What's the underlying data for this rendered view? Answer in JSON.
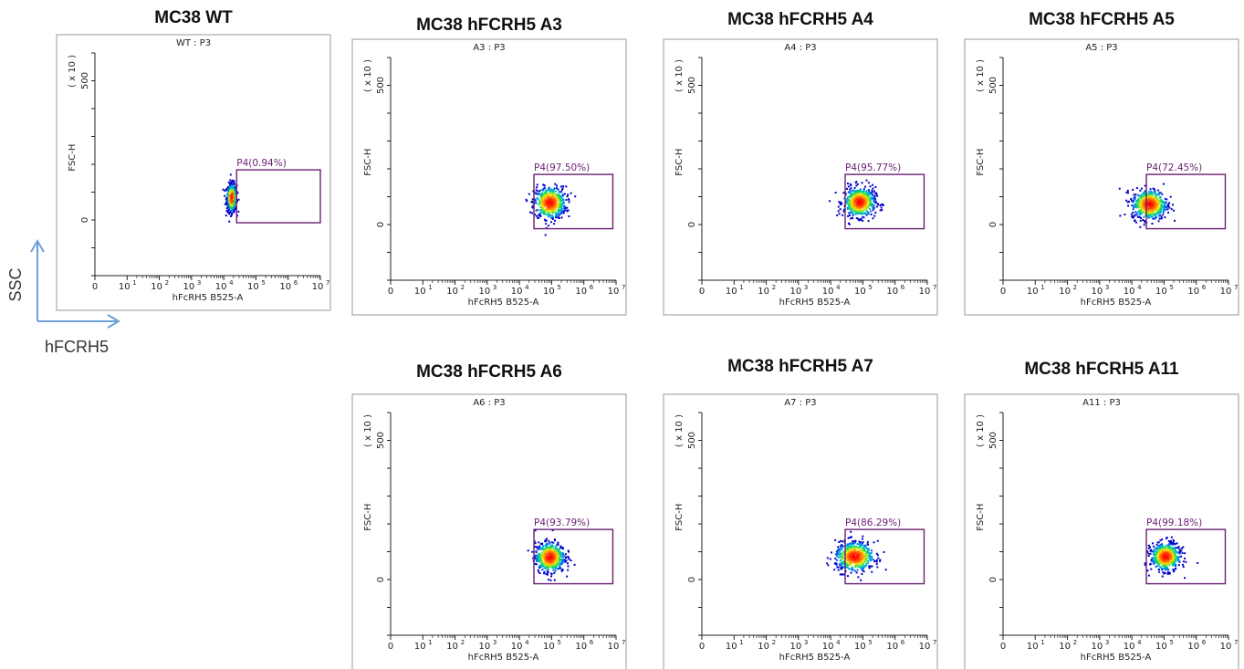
{
  "legend": {
    "y_label": "SSC",
    "x_label": "hFCRH5",
    "arrow_color": "#6f9fd8"
  },
  "colors": {
    "gate": "#6b1f73",
    "frame": "#999999",
    "density_low": "#0000cc",
    "density_high": "#ff0000"
  },
  "chart_data": [
    {
      "type": "scatter",
      "title": "MC38  WT",
      "subtitle": "WT : P3",
      "xlabel": "hFcRH5 B525-A",
      "ylabel": "FSC-H",
      "y_multiplier": "( x 10 )",
      "x_scale": "log",
      "x_ticks": [
        "0",
        "10",
        "10",
        "10",
        "10",
        "10",
        "10",
        "10"
      ],
      "x_tick_exp": [
        "",
        "1",
        "2",
        "3",
        "4",
        "5",
        "6",
        "7"
      ],
      "y_ticks": [
        "0",
        "500"
      ],
      "xlim_log": [
        0,
        7
      ],
      "ylim": [
        -200,
        600
      ],
      "gate": {
        "name": "P4",
        "percent": "0.94%",
        "label": "P4(0.94%)",
        "x_log": [
          4.4,
          7.0
        ],
        "y": [
          -10,
          180
        ]
      },
      "population_center": {
        "x_log": 4.25,
        "y": 80
      },
      "population_spread": {
        "x_log": 0.14,
        "y": 28
      }
    },
    {
      "type": "scatter",
      "title": "MC38 hFCRH5 A3",
      "subtitle": "A3 : P3",
      "xlabel": "hFcRH5 B525-A",
      "ylabel": "FSC-H",
      "y_multiplier": "( x 10 )",
      "x_scale": "log",
      "x_ticks": [
        "0",
        "10",
        "10",
        "10",
        "10",
        "10",
        "10",
        "10"
      ],
      "x_tick_exp": [
        "",
        "1",
        "2",
        "3",
        "4",
        "5",
        "6",
        "7"
      ],
      "y_ticks": [
        "0",
        "500"
      ],
      "xlim_log": [
        0,
        7
      ],
      "ylim": [
        -200,
        600
      ],
      "gate": {
        "name": "P4",
        "percent": "97.50%",
        "label": "P4(97.50%)",
        "x_log": [
          4.45,
          6.9
        ],
        "y": [
          -15,
          180
        ]
      },
      "population_center": {
        "x_log": 4.95,
        "y": 78
      },
      "population_spread": {
        "x_log": 0.45,
        "y": 32
      }
    },
    {
      "type": "scatter",
      "title": "MC38 hFCRH5 A4",
      "subtitle": "A4 : P3",
      "xlabel": "hFcRH5 B525-A",
      "ylabel": "FSC-H",
      "y_multiplier": "( x 10 )",
      "x_scale": "log",
      "x_ticks": [
        "0",
        "10",
        "10",
        "10",
        "10",
        "10",
        "10",
        "10"
      ],
      "x_tick_exp": [
        "",
        "1",
        "2",
        "3",
        "4",
        "5",
        "6",
        "7"
      ],
      "y_ticks": [
        "0",
        "500"
      ],
      "xlim_log": [
        0,
        7
      ],
      "ylim": [
        -200,
        600
      ],
      "gate": {
        "name": "P4",
        "percent": "95.77%",
        "label": "P4(95.77%)",
        "x_log": [
          4.45,
          6.9
        ],
        "y": [
          -15,
          180
        ]
      },
      "population_center": {
        "x_log": 4.9,
        "y": 80
      },
      "population_spread": {
        "x_log": 0.45,
        "y": 30
      }
    },
    {
      "type": "scatter",
      "title": "MC38 hFCRH5 A5",
      "subtitle": "A5 : P3",
      "xlabel": "hFcRH5 B525-A",
      "ylabel": "FSC-H",
      "y_multiplier": "( x 10 )",
      "x_scale": "log",
      "x_ticks": [
        "0",
        "10",
        "10",
        "10",
        "10",
        "10",
        "10",
        "10"
      ],
      "x_tick_exp": [
        "",
        "1",
        "2",
        "3",
        "4",
        "5",
        "6",
        "7"
      ],
      "y_ticks": [
        "0",
        "500"
      ],
      "xlim_log": [
        0,
        7
      ],
      "ylim": [
        -200,
        600
      ],
      "gate": {
        "name": "P4",
        "percent": "72.45%",
        "label": "P4(72.45%)",
        "x_log": [
          4.45,
          6.9
        ],
        "y": [
          -15,
          180
        ]
      },
      "population_center": {
        "x_log": 4.55,
        "y": 72
      },
      "population_spread": {
        "x_log": 0.5,
        "y": 30
      }
    },
    {
      "type": "scatter",
      "title": "MC38 hFCRH5 A6",
      "subtitle": "A6 : P3",
      "xlabel": "hFcRH5 B525-A",
      "ylabel": "FSC-H",
      "y_multiplier": "( x 10 )",
      "x_scale": "log",
      "x_ticks": [
        "0",
        "10",
        "10",
        "10",
        "10",
        "10",
        "10",
        "10"
      ],
      "x_tick_exp": [
        "",
        "1",
        "2",
        "3",
        "4",
        "5",
        "6",
        "7"
      ],
      "y_ticks": [
        "0",
        "500"
      ],
      "xlim_log": [
        0,
        7
      ],
      "ylim": [
        -200,
        600
      ],
      "gate": {
        "name": "P4",
        "percent": "93.79%",
        "label": "P4(93.79%)",
        "x_log": [
          4.45,
          6.9
        ],
        "y": [
          -15,
          180
        ]
      },
      "population_center": {
        "x_log": 4.95,
        "y": 80
      },
      "population_spread": {
        "x_log": 0.42,
        "y": 30
      }
    },
    {
      "type": "scatter",
      "title": "MC38 hFCRH5 A7",
      "subtitle": "A7 : P3",
      "xlabel": "hFcRH5 B525-A",
      "ylabel": "FSC-H",
      "y_multiplier": "( x 10 )",
      "x_scale": "log",
      "x_ticks": [
        "0",
        "10",
        "10",
        "10",
        "10",
        "10",
        "10",
        "10"
      ],
      "x_tick_exp": [
        "",
        "1",
        "2",
        "3",
        "4",
        "5",
        "6",
        "7"
      ],
      "y_ticks": [
        "0",
        "500"
      ],
      "xlim_log": [
        0,
        7
      ],
      "ylim": [
        -200,
        600
      ],
      "gate": {
        "name": "P4",
        "percent": "86.29%",
        "label": "P4(86.29%)",
        "x_log": [
          4.45,
          6.9
        ],
        "y": [
          -15,
          180
        ]
      },
      "population_center": {
        "x_log": 4.75,
        "y": 82
      },
      "population_spread": {
        "x_log": 0.55,
        "y": 30
      }
    },
    {
      "type": "scatter",
      "title": "MC38 hFCRH5 A11",
      "subtitle": "A11 : P3",
      "xlabel": "hFcRH5 B525-A",
      "ylabel": "FSC-H",
      "y_multiplier": "( x 10 )",
      "x_scale": "log",
      "x_ticks": [
        "0",
        "10",
        "10",
        "10",
        "10",
        "10",
        "10",
        "10"
      ],
      "x_tick_exp": [
        "",
        "1",
        "2",
        "3",
        "4",
        "5",
        "6",
        "7"
      ],
      "y_ticks": [
        "0",
        "500"
      ],
      "xlim_log": [
        0,
        7
      ],
      "ylim": [
        -200,
        600
      ],
      "gate": {
        "name": "P4",
        "percent": "99.18%",
        "label": "P4(99.18%)",
        "x_log": [
          4.45,
          6.9
        ],
        "y": [
          -15,
          180
        ]
      },
      "population_center": {
        "x_log": 5.05,
        "y": 82
      },
      "population_spread": {
        "x_log": 0.42,
        "y": 28
      }
    }
  ]
}
